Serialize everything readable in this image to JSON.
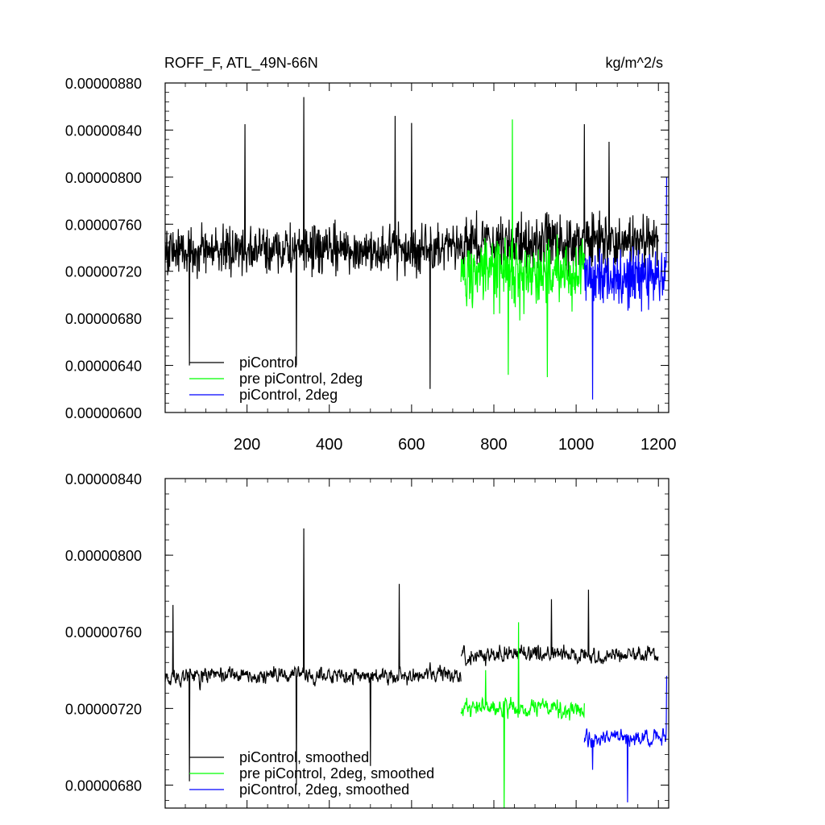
{
  "chart_data": [
    {
      "type": "line",
      "title": "ROFF_F, ATL_49N-66N",
      "units": "kg/m^2/s",
      "xlim": [
        1,
        1225
      ],
      "ylim": [
        6e-06,
        8.8e-06
      ],
      "x_ticks": [
        200,
        400,
        600,
        800,
        1000,
        1200
      ],
      "x_tick_labels": [
        "200",
        "400",
        "600",
        "800",
        "1000",
        "1200"
      ],
      "y_ticks": [
        6e-06,
        6.4e-06,
        6.8e-06,
        7.2e-06,
        7.6e-06,
        8e-06,
        8.4e-06,
        8.8e-06
      ],
      "y_tick_labels": [
        "0.00000600",
        "0.00000640",
        "0.00000680",
        "0.00000720",
        "0.00000760",
        "0.00000800",
        "0.00000840",
        "0.00000880"
      ],
      "legend_position": "bottom-left",
      "series": [
        {
          "name": "piControl",
          "color": "#000000",
          "x_start": 1,
          "x_end": 720,
          "mean": 7.38e-06,
          "amplitude": 3e-07,
          "spikes": [
            [
              60,
              6.4e-06
            ],
            [
              195,
              8.45e-06
            ],
            [
              320,
              6.4e-06
            ],
            [
              338,
              8.68e-06
            ],
            [
              560,
              8.52e-06
            ],
            [
              600,
              8.46e-06
            ],
            [
              645,
              6.2e-06
            ]
          ]
        },
        {
          "name": "piControl",
          "color": "#000000",
          "x_start": 720,
          "x_end": 1200,
          "mean": 7.45e-06,
          "amplitude": 3.5e-07,
          "spikes": [
            [
              1020,
              8.45e-06
            ],
            [
              1080,
              8.3e-06
            ]
          ]
        },
        {
          "name": "pre piControl, 2deg",
          "color": "#00ff00",
          "x_start": 720,
          "x_end": 1020,
          "mean": 7.18e-06,
          "amplitude": 4.2e-07,
          "spikes": [
            [
              845,
              8.49e-06
            ],
            [
              835,
              6.32e-06
            ],
            [
              930,
              6.3e-06
            ]
          ]
        },
        {
          "name": "piControl, 2deg",
          "color": "#0000ff",
          "x_start": 1020,
          "x_end": 1220,
          "mean": 7.15e-06,
          "amplitude": 4e-07,
          "spikes": [
            [
              1040,
              6.11e-06
            ],
            [
              1220,
              8e-06
            ]
          ]
        }
      ]
    },
    {
      "type": "line",
      "title": "",
      "units": "",
      "xlim": [
        1,
        1225
      ],
      "ylim": [
        6.68e-06,
        8.4e-06
      ],
      "x_ticks": [
        200,
        400,
        600,
        800,
        1000,
        1200
      ],
      "y_ticks": [
        6.8e-06,
        7.2e-06,
        7.6e-06,
        8e-06,
        8.4e-06
      ],
      "y_tick_labels": [
        "0.00000680",
        "0.00000720",
        "0.00000760",
        "0.00000800",
        "0.00000840"
      ],
      "legend_position": "bottom-left",
      "series": [
        {
          "name": "piControl, smoothed",
          "color": "#000000",
          "x_start": 1,
          "x_end": 720,
          "mean": 7.37e-06,
          "amplitude": 1.2e-07,
          "spikes": [
            [
              20,
              7.74e-06
            ],
            [
              60,
              6.82e-06
            ],
            [
              338,
              8.14e-06
            ],
            [
              320,
              6.8e-06
            ],
            [
              570,
              7.85e-06
            ],
            [
              500,
              6.9e-06
            ]
          ]
        },
        {
          "name": "piControl, smoothed",
          "color": "#000000",
          "x_start": 720,
          "x_end": 1200,
          "mean": 7.48e-06,
          "amplitude": 1.2e-07,
          "spikes": [
            [
              1030,
              7.82e-06
            ],
            [
              940,
              7.77e-06
            ]
          ]
        },
        {
          "name": "pre piControl, 2deg, smoothed",
          "color": "#00ff00",
          "x_start": 720,
          "x_end": 1020,
          "mean": 7.2e-06,
          "amplitude": 1.4e-07,
          "spikes": [
            [
              860,
              7.65e-06
            ],
            [
              825,
              6.68e-06
            ],
            [
              780,
              7.4e-06
            ]
          ]
        },
        {
          "name": "piControl, 2deg, smoothed",
          "color": "#0000ff",
          "x_start": 1020,
          "x_end": 1220,
          "mean": 7.05e-06,
          "amplitude": 1.2e-07,
          "spikes": [
            [
              1040,
              6.88e-06
            ],
            [
              1125,
              6.71e-06
            ],
            [
              1220,
              7.37e-06
            ]
          ]
        }
      ]
    }
  ],
  "legends": {
    "top": [
      "piControl",
      "pre piControl, 2deg",
      "piControl, 2deg"
    ],
    "bottom": [
      "piControl, smoothed",
      "pre piControl, 2deg, smoothed",
      "piControl, 2deg, smoothed"
    ]
  },
  "colors": {
    "black": "#000000",
    "green": "#00ff00",
    "blue": "#0000ff"
  }
}
